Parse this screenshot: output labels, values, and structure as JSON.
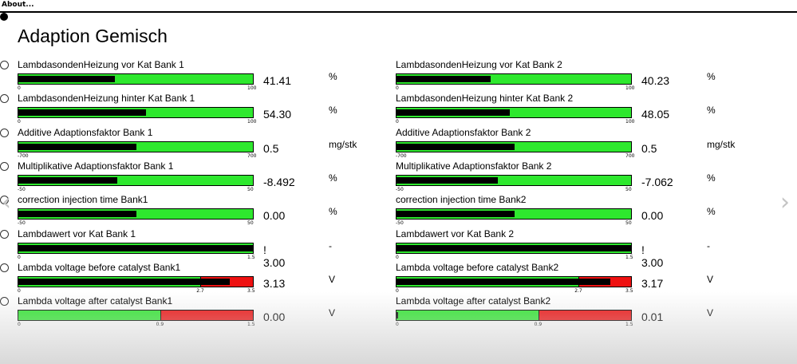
{
  "menu": {
    "about": "About..."
  },
  "title": "Adaption Gemisch",
  "colors": {
    "green": "#2ee82e",
    "red": "#ee1111",
    "fill": "#000000"
  },
  "nav": {
    "left": "‹",
    "right": "›"
  },
  "rows": [
    {
      "left": {
        "label": "LambdasondenHeizung vor Kat Bank 1",
        "min": "0",
        "max": "100",
        "value": "41.41",
        "unit": "%",
        "level": 0.41
      },
      "right": {
        "label": "LambdasondenHeizung vor Kat Bank 2",
        "min": "0",
        "max": "100",
        "value": "40.23",
        "unit": "%",
        "level": 0.4
      }
    },
    {
      "left": {
        "label": "LambdasondenHeizung hinter Kat Bank 1",
        "min": "0",
        "max": "100",
        "value": "54.30",
        "unit": "%",
        "level": 0.54
      },
      "right": {
        "label": "LambdasondenHeizung hinter Kat Bank 2",
        "min": "0",
        "max": "100",
        "value": "48.05",
        "unit": "%",
        "level": 0.48
      }
    },
    {
      "left": {
        "label": "Additive Adaptionsfaktor Bank 1",
        "min": "-700",
        "max": "700",
        "value": "0.5",
        "unit": "mg/stk",
        "level": 0.5
      },
      "right": {
        "label": "Additive Adaptionsfaktor Bank 2",
        "min": "-700",
        "max": "700",
        "value": "0.5",
        "unit": "mg/stk",
        "level": 0.5
      }
    },
    {
      "left": {
        "label": "Multiplikative Adaptionsfaktor Bank 1",
        "min": "-50",
        "max": "50",
        "value": "-8.492",
        "unit": "%",
        "level": 0.42
      },
      "right": {
        "label": "Multiplikative Adaptionsfaktor Bank 2",
        "min": "-50",
        "max": "50",
        "value": "-7.062",
        "unit": "%",
        "level": 0.43
      }
    },
    {
      "left": {
        "label": "correction injection time Bank1",
        "min": "-50",
        "max": "50",
        "value": "0.00",
        "unit": "%",
        "level": 0.5
      },
      "right": {
        "label": "correction injection time Bank2",
        "min": "-50",
        "max": "50",
        "value": "0.00",
        "unit": "%",
        "level": 0.5
      }
    },
    {
      "left": {
        "label": "Lambdawert vor Kat Bank 1",
        "min": "0",
        "max": "1.5",
        "value": "! 3.00",
        "unit": "-",
        "level": 1.0
      },
      "right": {
        "label": "Lambdawert vor Kat Bank 2",
        "min": "0",
        "max": "1.5",
        "value": "! 3.00",
        "unit": "-",
        "level": 1.0
      }
    },
    {
      "left": {
        "label": "Lambda voltage before catalyst Bank1",
        "min": "0",
        "max": "3.5",
        "threshold": "2.7",
        "value": "3.13",
        "unit": "V",
        "level": 0.894,
        "threshold_frac": 0.771
      },
      "right": {
        "label": "Lambda voltage before catalyst Bank2",
        "min": "0",
        "max": "3.5",
        "threshold": "2.7",
        "value": "3.17",
        "unit": "V",
        "level": 0.906,
        "threshold_frac": 0.771
      }
    },
    {
      "left": {
        "label": "Lambda voltage after catalyst Bank1",
        "min": "0",
        "max": "1.5",
        "threshold": "0.9",
        "value": "0.00",
        "unit": "V",
        "level": 0.0,
        "threshold_frac": 0.6
      },
      "right": {
        "label": "Lambda voltage after catalyst Bank2",
        "min": "0",
        "max": "1.5",
        "threshold": "0.9",
        "value": "0.01",
        "unit": "V",
        "level": 0.007,
        "threshold_frac": 0.6
      }
    }
  ]
}
